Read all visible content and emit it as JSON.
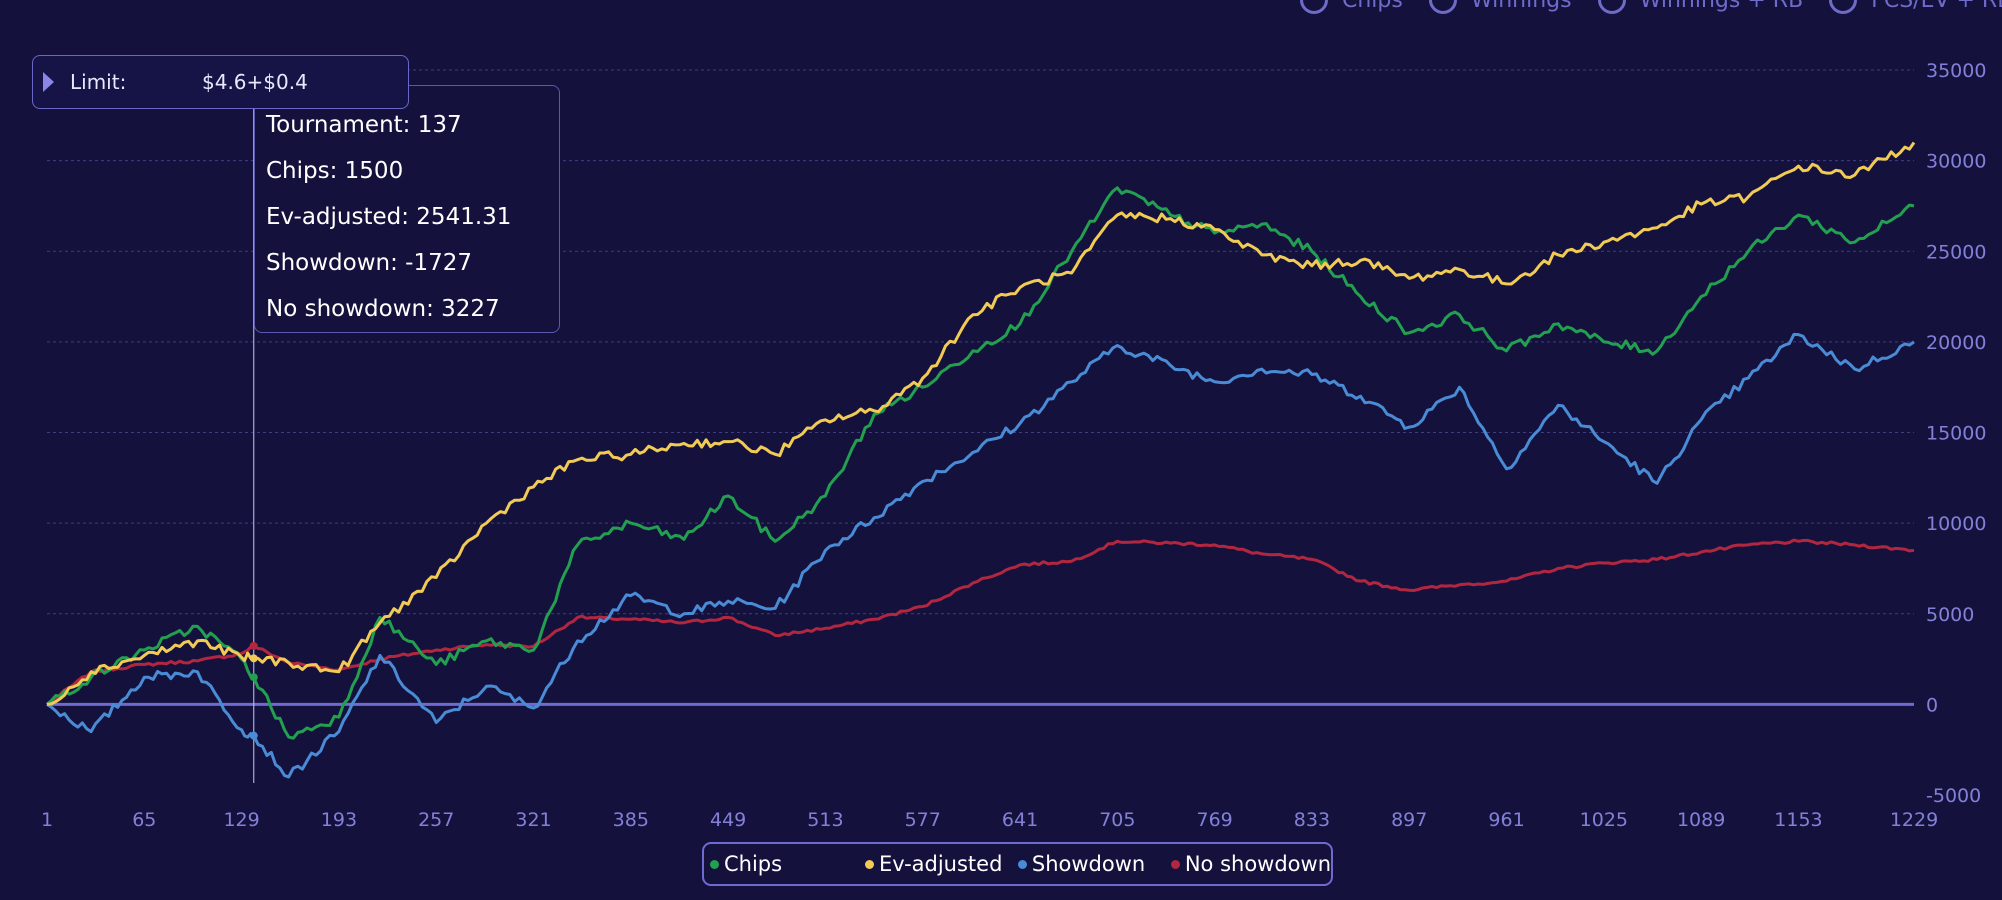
{
  "toggles": [
    {
      "label": "Chips"
    },
    {
      "label": "Winnings"
    },
    {
      "label": "Winnings + RB"
    },
    {
      "label": "FCS/EV + RB"
    }
  ],
  "filter": {
    "label": "Limit:",
    "value": "$4.6+$0.4"
  },
  "tooltip": {
    "lines": [
      "Tournament: 137",
      "Chips: 1500",
      "Ev-adjusted: 2541.31",
      "Showdown: -1727",
      "No showdown: 3227"
    ],
    "x": 137
  },
  "colors": {
    "background": "#14123d",
    "grid": "#3f3c82",
    "zero_line": "#6e6ad0",
    "axis_text": "#8480d8",
    "chips": "#22a04f",
    "ev_adjusted": "#f2cb55",
    "showdown": "#4a8bd6",
    "no_showdown": "#b3263f"
  },
  "chart_data": {
    "type": "line",
    "title": "",
    "xlabel": "",
    "ylabel": "",
    "xlim": [
      1,
      1229
    ],
    "ylim": [
      -5000,
      35000
    ],
    "x_ticks": [
      1,
      65,
      129,
      193,
      257,
      321,
      385,
      449,
      513,
      577,
      641,
      705,
      769,
      833,
      897,
      961,
      1025,
      1089,
      1153,
      1229
    ],
    "y_ticks": [
      -5000,
      0,
      5000,
      10000,
      15000,
      20000,
      25000,
      30000,
      35000
    ],
    "grid": true,
    "legend_position": "bottom-center",
    "x": [
      1,
      30,
      65,
      100,
      129,
      137,
      160,
      193,
      220,
      257,
      290,
      321,
      350,
      385,
      420,
      449,
      480,
      513,
      545,
      577,
      610,
      641,
      675,
      705,
      740,
      769,
      800,
      833,
      865,
      897,
      930,
      961,
      995,
      1025,
      1060,
      1089,
      1120,
      1153,
      1190,
      1229
    ],
    "series": [
      {
        "name": "Chips",
        "color": "#22a04f",
        "values": [
          0,
          1500,
          3000,
          4300,
          2500,
          1500,
          -1800,
          -700,
          4800,
          2200,
          3500,
          3000,
          8800,
          10000,
          9100,
          11500,
          9000,
          11500,
          16000,
          17500,
          19500,
          21000,
          25000,
          28500,
          27000,
          26000,
          26500,
          25000,
          22500,
          20500,
          21500,
          19500,
          21000,
          20000,
          19500,
          22500,
          25000,
          27000,
          25500,
          27500
        ]
      },
      {
        "name": "Ev-adjusted",
        "color": "#f2cb55",
        "values": [
          0,
          1800,
          2700,
          3500,
          2600,
          2541.31,
          2300,
          1800,
          4500,
          7000,
          10000,
          12000,
          13500,
          13800,
          14400,
          14500,
          13800,
          15700,
          16200,
          18000,
          21500,
          23000,
          23800,
          27000,
          26800,
          26200,
          24800,
          24200,
          24500,
          23500,
          24000,
          23200,
          24800,
          25500,
          26300,
          27600,
          28000,
          29700,
          29200,
          31000
        ]
      },
      {
        "name": "Showdown",
        "color": "#4a8bd6",
        "values": [
          0,
          -1500,
          1500,
          1800,
          -1400,
          -1727,
          -4000,
          -1500,
          2700,
          -1000,
          1000,
          -200,
          3500,
          6000,
          5000,
          5700,
          5300,
          8500,
          10300,
          12300,
          13900,
          15500,
          17800,
          19800,
          18700,
          17800,
          18500,
          18200,
          17000,
          15300,
          17500,
          13000,
          16500,
          14500,
          12200,
          15700,
          18000,
          20400,
          18500,
          20000
        ]
      },
      {
        "name": "No showdown",
        "color": "#b3263f",
        "values": [
          0,
          1800,
          2200,
          2400,
          2800,
          3227,
          2300,
          1900,
          2500,
          3000,
          3300,
          3200,
          4800,
          4700,
          4500,
          4800,
          3800,
          4200,
          4700,
          5400,
          6700,
          7700,
          7900,
          9000,
          8900,
          8800,
          8300,
          8000,
          6800,
          6300,
          6600,
          6800,
          7500,
          7800,
          8000,
          8400,
          8800,
          9000,
          8800,
          8500
        ]
      }
    ]
  }
}
